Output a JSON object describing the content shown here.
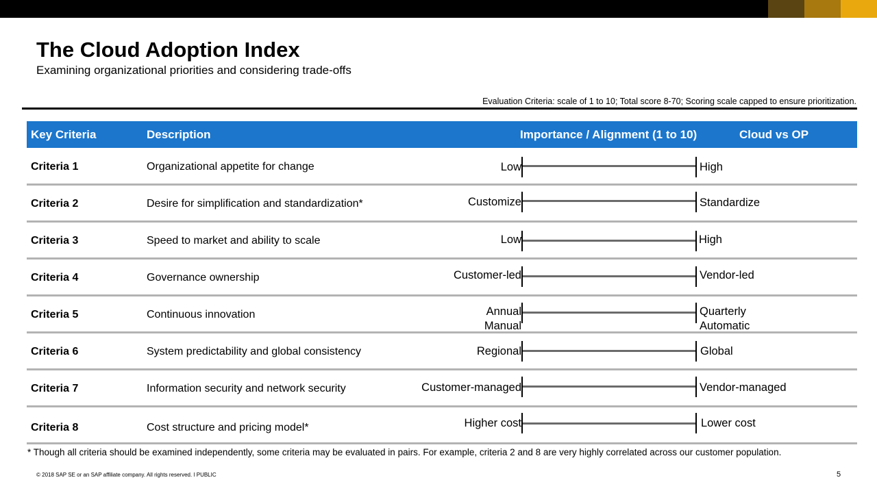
{
  "brand": {
    "bar_color": "#000000",
    "accent_colors": [
      "#5a4412",
      "#a8790f",
      "#e9a90e"
    ],
    "header_color": "#1b76cc"
  },
  "title": "The Cloud Adoption Index",
  "subtitle": "Examining organizational priorities and considering trade-offs",
  "evaluation_note": "Evaluation Criteria: scale of 1 to 10; Total score 8-70; Scoring scale capped to ensure prioritization.",
  "table": {
    "headers": {
      "key_criteria": "Key Criteria",
      "description": "Description",
      "importance": "Importance / Alignment  (1 to 10)",
      "cloud_vs_op": "Cloud vs OP"
    },
    "rows": [
      {
        "criteria": "Criteria 1",
        "description": "Organizational appetite for change",
        "low_label": "Low",
        "high_label": "High"
      },
      {
        "criteria": "Criteria 2",
        "description": "Desire for simplification and standardization*",
        "low_label": "Customize",
        "high_label": "Standardize"
      },
      {
        "criteria": "Criteria 3",
        "description": "Speed to market and ability to scale",
        "low_label": "Low",
        "high_label": "High"
      },
      {
        "criteria": "Criteria 4",
        "description": "Governance ownership",
        "low_label": "Customer-led",
        "high_label": "Vendor-led"
      },
      {
        "criteria": "Criteria 5",
        "description": "Continuous innovation",
        "low_label": "Annual",
        "low_label_2": "Manual",
        "high_label": "Quarterly",
        "high_label_2": "Automatic"
      },
      {
        "criteria": "Criteria 6",
        "description": "System predictability and global consistency",
        "low_label": "Regional",
        "high_label": "Global"
      },
      {
        "criteria": "Criteria 7",
        "description": "Information security and network security",
        "low_label": "Customer-managed",
        "high_label": "Vendor-managed"
      },
      {
        "criteria": "Criteria 8",
        "description": "Cost structure and pricing model*",
        "low_label": "Higher cost",
        "high_label": "Lower cost"
      }
    ]
  },
  "footnote": "* Though all criteria should be examined independently, some criteria may be evaluated in pairs.  For example, criteria 2 and 8 are very highly correlated across our customer population.",
  "copyright": "© 2018 SAP SE or an SAP affiliate company. All rights reserved.  ǀ  PUBLIC",
  "page_number": "5"
}
